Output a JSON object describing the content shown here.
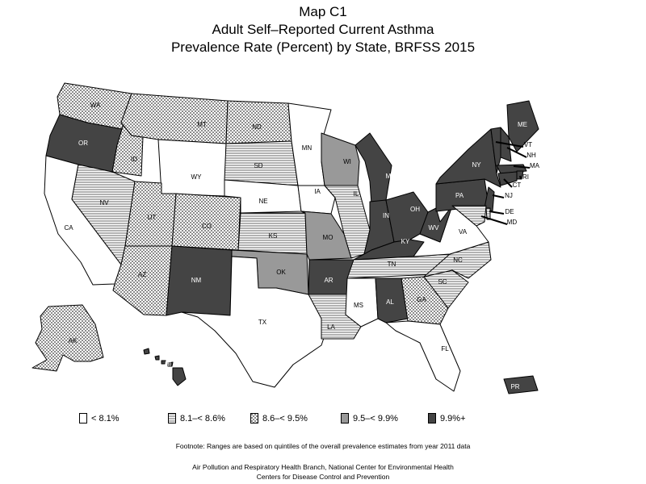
{
  "title": {
    "line1": "Map C1",
    "line2": "Adult Self–Reported Current Asthma",
    "line3": "Prevalence Rate (Percent) by State, BRFSS 2015"
  },
  "legend": [
    {
      "label": "< 8.1%",
      "pattern": "blank"
    },
    {
      "label": "8.1–< 8.6%",
      "pattern": "hlines"
    },
    {
      "label": "8.6–< 9.5%",
      "pattern": "cross"
    },
    {
      "label": "9.5–< 9.9%",
      "pattern": "gray"
    },
    {
      "label": "9.9%+",
      "pattern": "dark"
    }
  ],
  "footnote": "Footnote: Ranges are based on quintiles of the overall prevalence estimates from year 2011 data",
  "credit": {
    "line1": "Air Pollution and Respiratory Health Branch, National Center for Environmental Health",
    "line2": "Centers for Disease Control and Prevention"
  },
  "colors": {
    "gray": "#999999",
    "dark": "#444444",
    "blank": "#ffffff"
  },
  "states": [
    {
      "abbr": "WA",
      "category": "8.6–< 9.5%"
    },
    {
      "abbr": "OR",
      "category": "9.9%+"
    },
    {
      "abbr": "CA",
      "category": "< 8.1%"
    },
    {
      "abbr": "ID",
      "category": "8.6–< 9.5%"
    },
    {
      "abbr": "NV",
      "category": "8.1–< 8.6%"
    },
    {
      "abbr": "MT",
      "category": "8.6–< 9.5%"
    },
    {
      "abbr": "WY",
      "category": "< 8.1%"
    },
    {
      "abbr": "UT",
      "category": "8.6–< 9.5%"
    },
    {
      "abbr": "AZ",
      "category": "8.6–< 9.5%"
    },
    {
      "abbr": "CO",
      "category": "8.6–< 9.5%"
    },
    {
      "abbr": "NM",
      "category": "9.9%+"
    },
    {
      "abbr": "ND",
      "category": "8.6–< 9.5%"
    },
    {
      "abbr": "SD",
      "category": "8.1–< 8.6%"
    },
    {
      "abbr": "NE",
      "category": "< 8.1%"
    },
    {
      "abbr": "KS",
      "category": "8.1–< 8.6%"
    },
    {
      "abbr": "OK",
      "category": "9.5–< 9.9%"
    },
    {
      "abbr": "TX",
      "category": "< 8.1%"
    },
    {
      "abbr": "MN",
      "category": "< 8.1%"
    },
    {
      "abbr": "IA",
      "category": "< 8.1%"
    },
    {
      "abbr": "MO",
      "category": "9.5–< 9.9%"
    },
    {
      "abbr": "AR",
      "category": "9.9%+"
    },
    {
      "abbr": "LA",
      "category": "8.1–< 8.6%"
    },
    {
      "abbr": "WI",
      "category": "9.5–< 9.9%"
    },
    {
      "abbr": "IL",
      "category": "8.1–< 8.6%"
    },
    {
      "abbr": "MI",
      "category": "9.9%+"
    },
    {
      "abbr": "IN",
      "category": "9.9%+"
    },
    {
      "abbr": "OH",
      "category": "9.9%+"
    },
    {
      "abbr": "KY",
      "category": "9.9%+"
    },
    {
      "abbr": "TN",
      "category": "8.1–< 8.6%"
    },
    {
      "abbr": "MS",
      "category": "< 8.1%"
    },
    {
      "abbr": "AL",
      "category": "9.9%+"
    },
    {
      "abbr": "GA",
      "category": "8.6–< 9.5%"
    },
    {
      "abbr": "FL",
      "category": "< 8.1%"
    },
    {
      "abbr": "SC",
      "category": "8.1–< 8.6%"
    },
    {
      "abbr": "NC",
      "category": "8.1–< 8.6%"
    },
    {
      "abbr": "VA",
      "category": "< 8.1%"
    },
    {
      "abbr": "WV",
      "category": "9.9%+"
    },
    {
      "abbr": "PA",
      "category": "9.9%+"
    },
    {
      "abbr": "NY",
      "category": "9.9%+"
    },
    {
      "abbr": "ME",
      "category": "9.9%+"
    },
    {
      "abbr": "VT",
      "category": "9.9%+"
    },
    {
      "abbr": "NH",
      "category": "9.9%+"
    },
    {
      "abbr": "MA",
      "category": "9.9%+"
    },
    {
      "abbr": "RI",
      "category": "9.9%+"
    },
    {
      "abbr": "CT",
      "category": "9.9%+"
    },
    {
      "abbr": "NJ",
      "category": "9.9%+"
    },
    {
      "abbr": "DE",
      "category": "8.1–< 8.6%"
    },
    {
      "abbr": "MD",
      "category": "8.1–< 8.6%"
    },
    {
      "abbr": "AK",
      "category": "8.6–< 9.5%"
    },
    {
      "abbr": "HI",
      "category": "9.9%+"
    },
    {
      "abbr": "PR",
      "category": "9.9%+"
    }
  ]
}
